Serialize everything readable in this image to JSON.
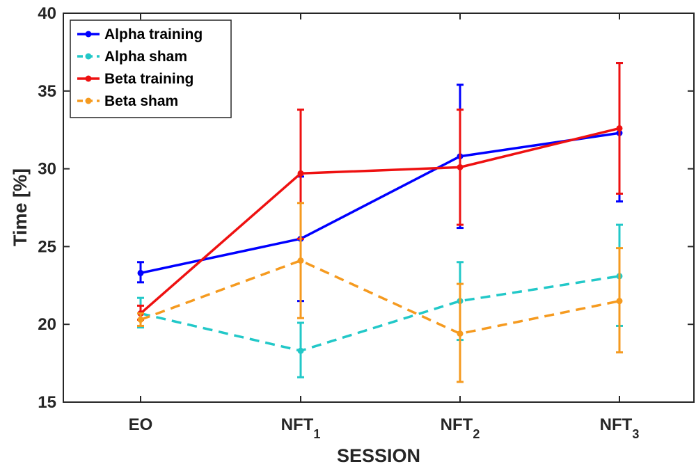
{
  "chart_data": {
    "type": "line",
    "xlabel": "SESSION",
    "ylabel": "Time [%]",
    "ylim": [
      15,
      40
    ],
    "yticks": [
      15,
      20,
      25,
      30,
      35,
      40
    ],
    "categories": [
      {
        "base": "EO",
        "sub": ""
      },
      {
        "base": "NFT",
        "sub": "1"
      },
      {
        "base": "NFT",
        "sub": "2"
      },
      {
        "base": "NFT",
        "sub": "3"
      }
    ],
    "legend_position": "top-left",
    "grid": false,
    "series": [
      {
        "name": "Alpha training",
        "color": "#0000ff",
        "dash": "solid",
        "values": [
          23.3,
          25.5,
          30.8,
          32.3
        ],
        "err_low": [
          22.7,
          21.5,
          26.2,
          27.9
        ],
        "err_high": [
          24.0,
          29.5,
          35.4,
          36.8
        ]
      },
      {
        "name": "Alpha sham",
        "color": "#22c8c8",
        "dash": "dashed",
        "values": [
          20.7,
          18.3,
          21.5,
          23.1
        ],
        "err_low": [
          19.8,
          16.6,
          19.0,
          19.9
        ],
        "err_high": [
          21.7,
          20.1,
          24.0,
          26.4
        ]
      },
      {
        "name": "Beta training",
        "color": "#ee1111",
        "dash": "solid",
        "values": [
          20.7,
          29.7,
          30.1,
          32.6
        ],
        "err_low": [
          20.3,
          25.5,
          26.4,
          28.4
        ],
        "err_high": [
          21.2,
          33.8,
          33.8,
          36.8
        ]
      },
      {
        "name": "Beta sham",
        "color": "#f59a1f",
        "dash": "dashed",
        "values": [
          20.3,
          24.1,
          19.4,
          21.5
        ],
        "err_low": [
          19.9,
          20.4,
          16.3,
          18.2
        ],
        "err_high": [
          20.7,
          27.8,
          22.6,
          24.9
        ]
      }
    ]
  }
}
